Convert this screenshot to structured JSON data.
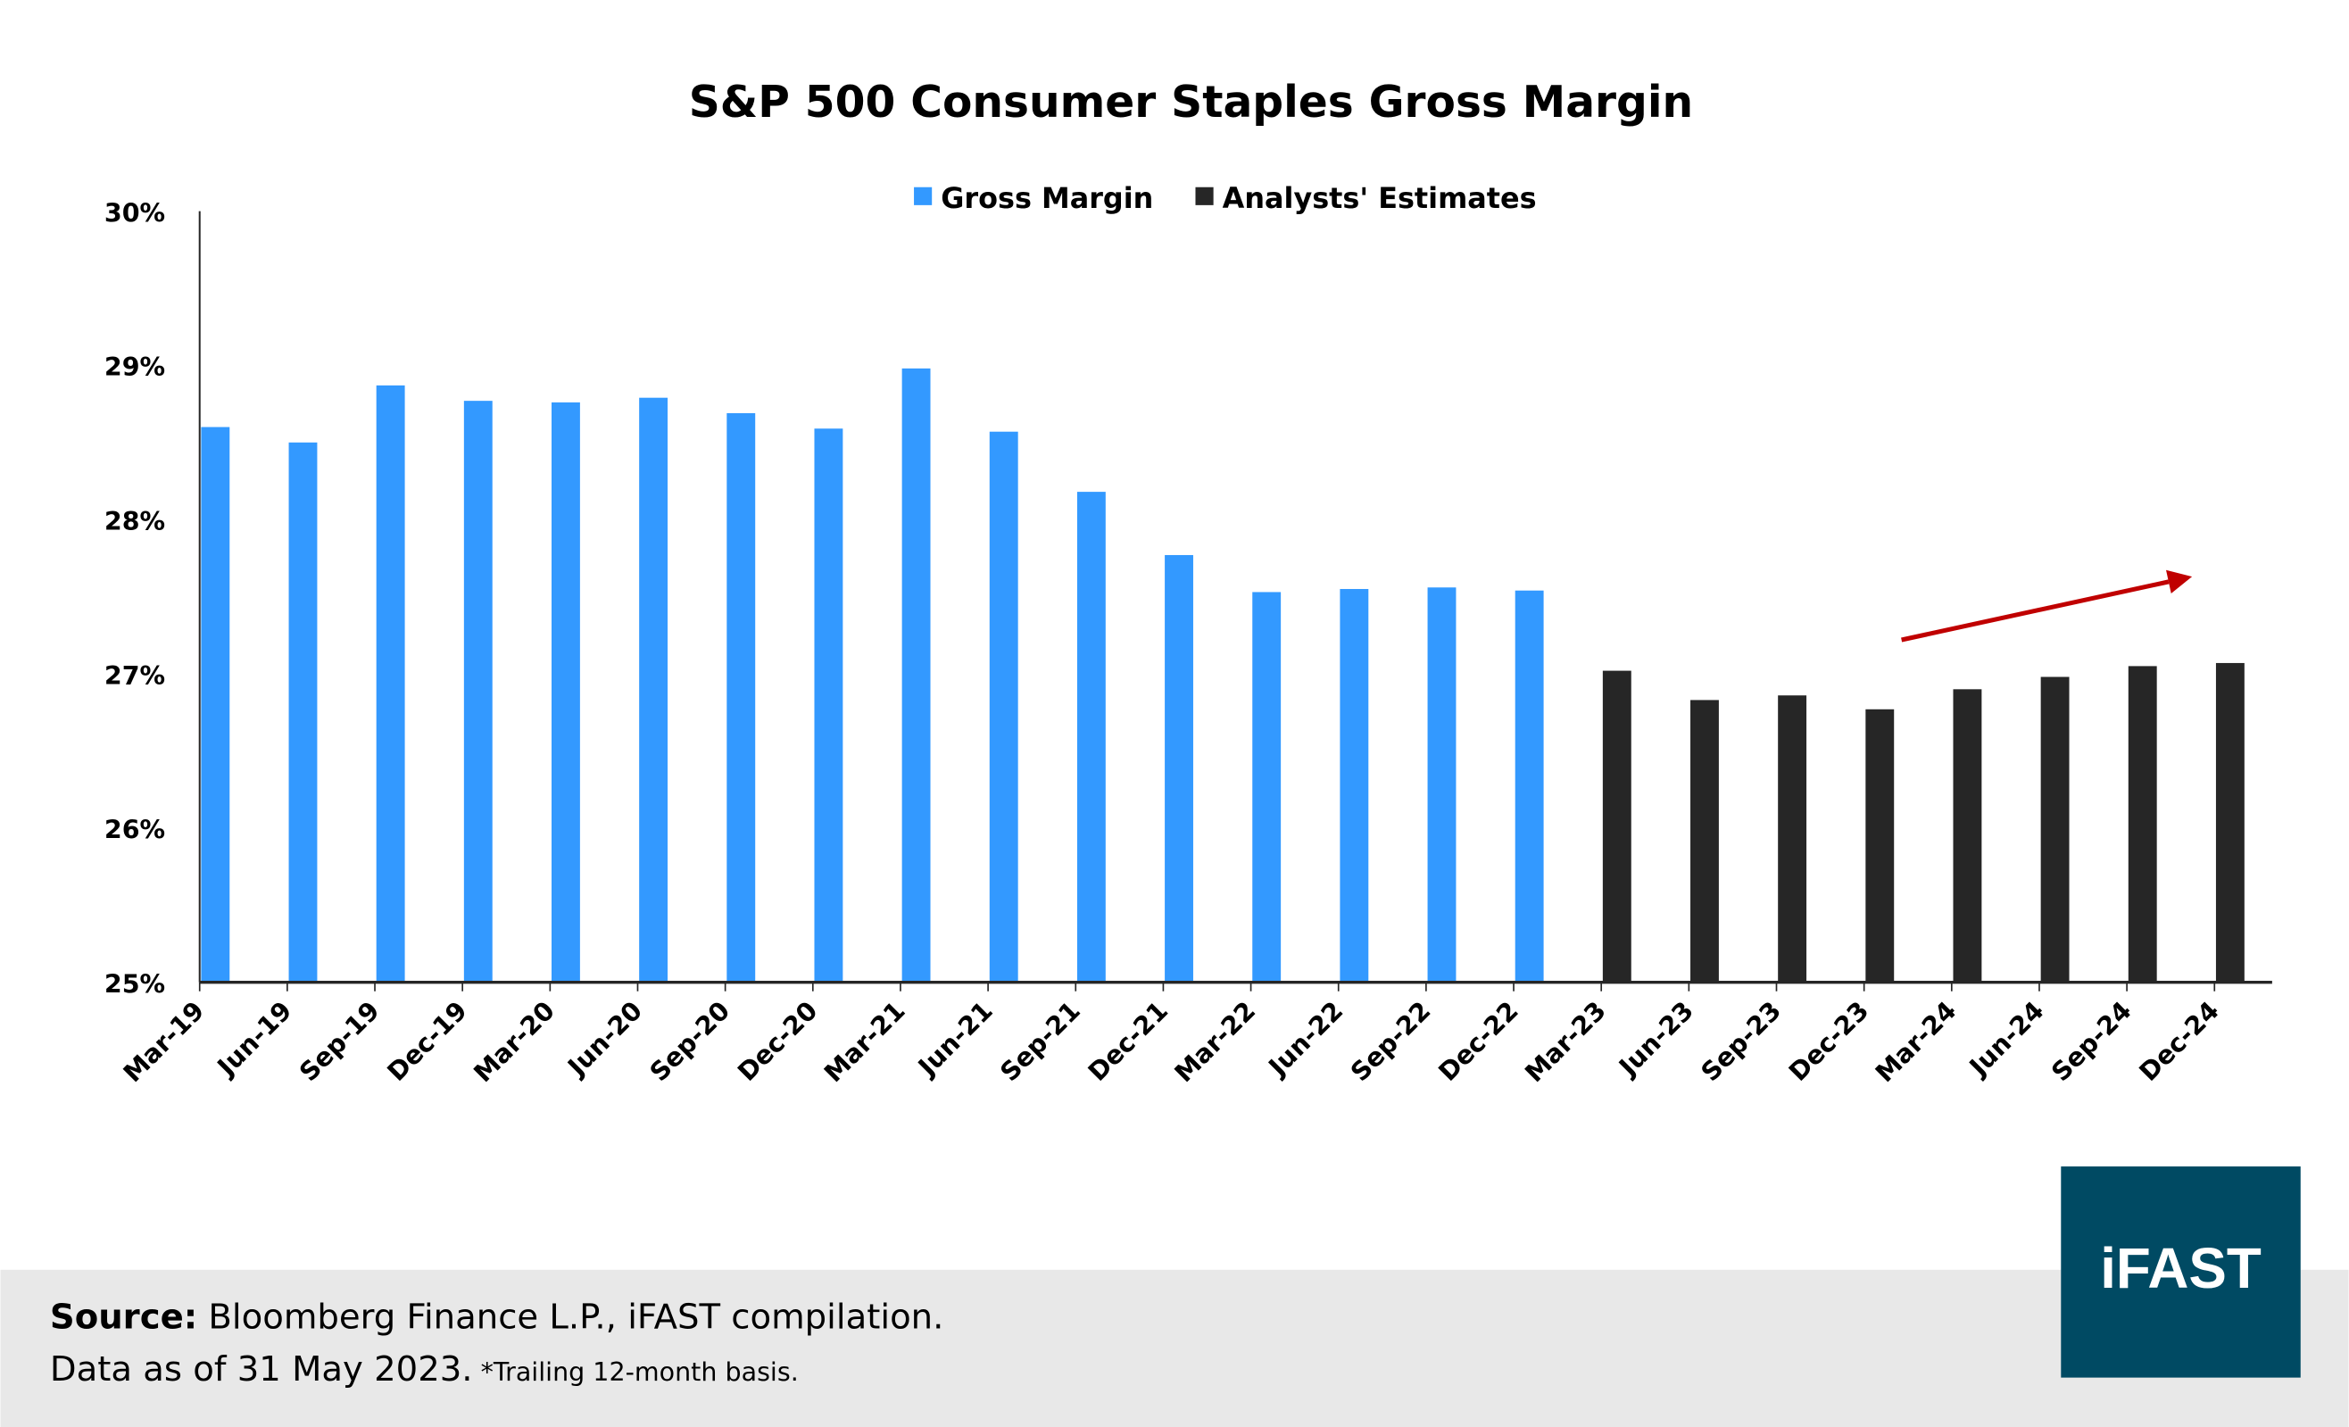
{
  "chart_data": {
    "type": "bar",
    "title": "S&P 500 Consumer Staples Gross Margin",
    "categories": [
      "Mar-19",
      "Jun-19",
      "Sep-19",
      "Dec-19",
      "Mar-20",
      "Jun-20",
      "Sep-20",
      "Dec-20",
      "Mar-21",
      "Jun-21",
      "Sep-21",
      "Dec-21",
      "Mar-22",
      "Jun-22",
      "Sep-22",
      "Dec-22",
      "Mar-23",
      "Jun-23",
      "Sep-23",
      "Dec-23",
      "Mar-24",
      "Jun-24",
      "Sep-24",
      "Dec-24"
    ],
    "series": [
      {
        "name": "Gross Margin",
        "color": "#3399FF",
        "values": [
          28.6,
          28.5,
          28.87,
          28.77,
          28.76,
          28.79,
          28.69,
          28.59,
          28.98,
          28.57,
          28.18,
          27.77,
          27.53,
          27.55,
          27.56,
          27.54,
          null,
          null,
          null,
          null,
          null,
          null,
          null,
          null
        ]
      },
      {
        "name": "Analysts' Estimates",
        "color": "#262626",
        "values": [
          null,
          null,
          null,
          null,
          null,
          null,
          null,
          null,
          null,
          null,
          null,
          null,
          null,
          null,
          null,
          null,
          27.02,
          26.83,
          26.86,
          26.77,
          26.9,
          26.98,
          27.05,
          27.07
        ]
      }
    ],
    "ylim": [
      25,
      30
    ],
    "yticks": [
      "25%",
      "26%",
      "27%",
      "28%",
      "29%",
      "30%"
    ],
    "xlabel": "",
    "ylabel": "",
    "grid": false,
    "legend_placement": "top-center",
    "annotation": {
      "type": "arrow",
      "color": "#C00000",
      "from": [
        "Dec-23",
        27.22
      ],
      "to": [
        "Dec-24",
        27.63
      ]
    }
  },
  "footer": {
    "source_label": "Source:",
    "source_text": " Bloomberg Finance L.P., iFAST compilation.",
    "data_as_of": "Data as of 31 May 2023.",
    "note": " *Trailing 12-month basis.",
    "logo_text": "iFAST",
    "logo_color": "#004A63",
    "band_color": "#E8E8E8"
  }
}
